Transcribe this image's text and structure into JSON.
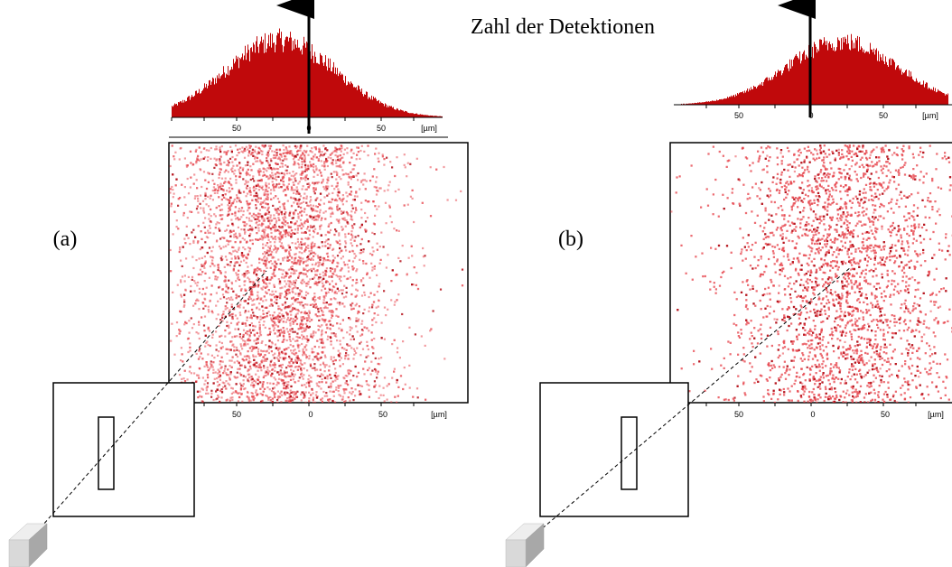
{
  "title": "Zahl der Detektionen",
  "colors": {
    "histogram_fill": "#c0090b",
    "scatter_point": "#e8474f",
    "scatter_dense": "#b5121b",
    "outline": "#000000",
    "source_front": "#d9d9d9",
    "source_top": "#eeeeee",
    "source_side": "#a8a8a8"
  },
  "icons": {
    "source_block": "grey-box-source-icon",
    "detector_slit": "slit-rectangle-icon"
  },
  "panels": [
    {
      "label": "(a)",
      "histogram": {
        "tick_labels": [
          "50",
          "0",
          "50"
        ],
        "unit_label": "[µm]",
        "distribution": {
          "center_um": -20,
          "sigma_um": 38,
          "range_um": [
            -95,
            95
          ]
        }
      },
      "scatter": {
        "tick_labels": [
          "50",
          "0",
          "50"
        ],
        "unit_label": "[µm]",
        "distribution": {
          "center_um": -20,
          "sigma_um": 38,
          "range_um": [
            -95,
            95
          ]
        }
      }
    },
    {
      "label": "(b)",
      "histogram": {
        "tick_labels": [
          "50",
          "0",
          "50",
          "[µm]"
        ],
        "unit_label": "[µm]",
        "distribution": {
          "center_um": 22,
          "sigma_um": 38,
          "range_um": [
            -95,
            95
          ]
        }
      },
      "scatter": {
        "tick_labels": [
          "50",
          "0",
          "50",
          "[µm]"
        ],
        "unit_label": "[µm]",
        "distribution": {
          "center_um": 22,
          "sigma_um": 38,
          "range_um": [
            -95,
            95
          ]
        }
      }
    }
  ],
  "chart_data": [
    {
      "type": "bar",
      "xlabel": "[µm]",
      "x_ticks": [
        -50,
        0,
        50
      ],
      "distribution": "gaussian",
      "center": -20,
      "sigma": 38
    },
    {
      "type": "scatter",
      "xlabel": "[µm]",
      "x_ticks": [
        -50,
        0,
        50
      ],
      "distribution": "gaussian",
      "center": -20,
      "sigma": 38
    },
    {
      "type": "bar",
      "xlabel": "[µm]",
      "x_ticks": [
        -50,
        0,
        50
      ],
      "distribution": "gaussian",
      "center": 22,
      "sigma": 38
    },
    {
      "type": "scatter",
      "xlabel": "[µm]",
      "x_ticks": [
        -50,
        0,
        50
      ],
      "distribution": "gaussian",
      "center": 22,
      "sigma": 38
    }
  ]
}
